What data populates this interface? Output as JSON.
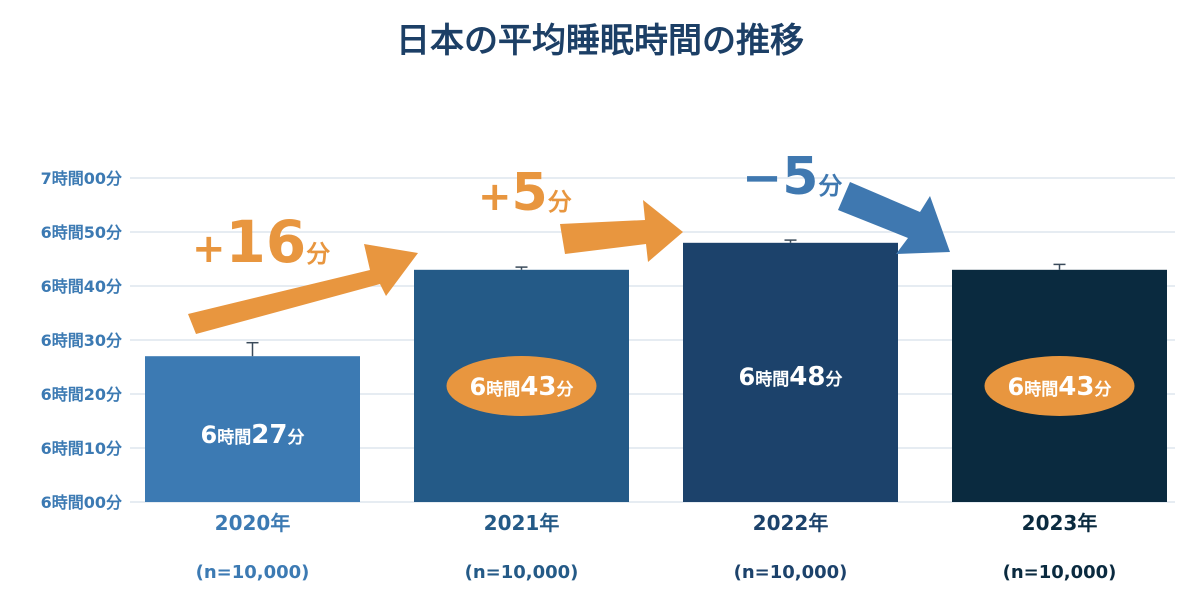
{
  "chart_data": {
    "type": "bar",
    "title": "日本の平均睡眠時間の推移",
    "xlabel": "",
    "ylabel": "",
    "categories": [
      "2020年",
      "2021年",
      "2022年",
      "2023年"
    ],
    "sample_sizes": [
      "(n=10,000)",
      "(n=10,000)",
      "(n=10,000)",
      "(n=10,000)"
    ],
    "values_minutes": [
      387,
      403,
      408,
      403
    ],
    "error_upper_minutes": [
      389.5,
      403.5,
      408.5,
      404
    ],
    "value_labels": [
      {
        "hours": "6",
        "hours_unit": "時間",
        "minutes": "27",
        "minutes_unit": "分"
      },
      {
        "hours": "6",
        "hours_unit": "時間",
        "minutes": "43",
        "minutes_unit": "分"
      },
      {
        "hours": "6",
        "hours_unit": "時間",
        "minutes": "48",
        "minutes_unit": "分"
      },
      {
        "hours": "6",
        "hours_unit": "時間",
        "minutes": "43",
        "minutes_unit": "分"
      }
    ],
    "highlighted_labels": [
      false,
      true,
      false,
      true
    ],
    "ylim_minutes": [
      360,
      420
    ],
    "yticks_minutes": [
      360,
      370,
      380,
      390,
      400,
      410,
      420
    ],
    "ytick_labels": [
      "6時間00分",
      "6時間10分",
      "6時間20分",
      "6時間30分",
      "6時間40分",
      "6時間50分",
      "7時間00分"
    ],
    "grid": true,
    "legend": "none",
    "changes": [
      {
        "from": 0,
        "to": 1,
        "sign": "+",
        "number": "16",
        "unit": "分",
        "color": "#e8963f"
      },
      {
        "from": 1,
        "to": 2,
        "sign": "+",
        "number": "5",
        "unit": "分",
        "color": "#e8963f"
      },
      {
        "from": 2,
        "to": 3,
        "sign": "−",
        "number": "5",
        "unit": "分",
        "color": "#3f78b0"
      }
    ],
    "colors": {
      "bars": [
        "#3c7ab3",
        "#245a87",
        "#1c426b",
        "#0a2a3f"
      ],
      "title": "#1c3f66",
      "axis_text": "#3c7ab3",
      "category_text": [
        "#3c7ab3",
        "#245a87",
        "#1c426b",
        "#0a2a3f"
      ],
      "highlight_fill": "#e8963f",
      "grid": "#dde6ee"
    }
  }
}
